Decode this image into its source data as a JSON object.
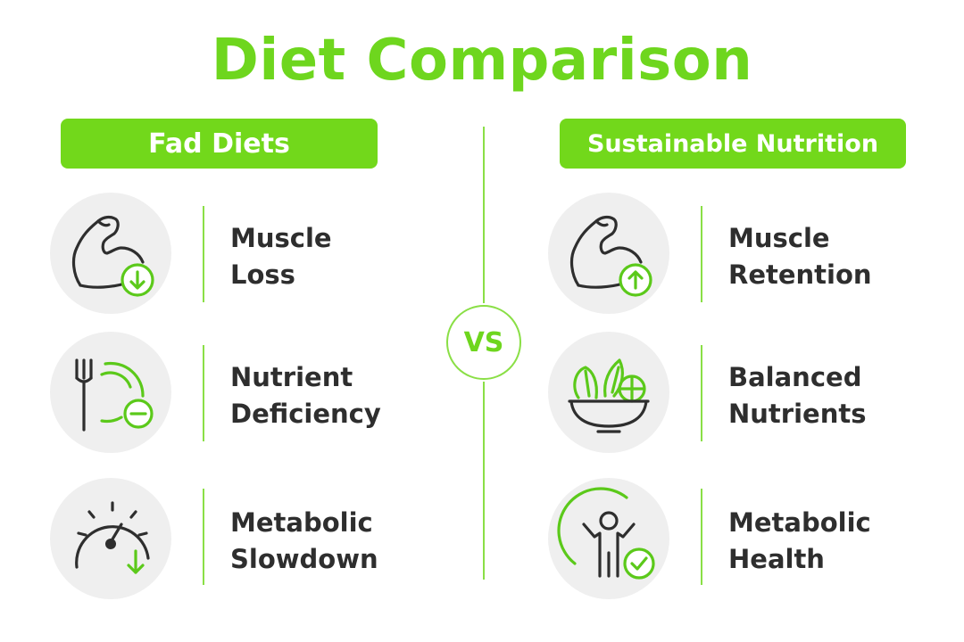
{
  "title": "Diet Comparison",
  "vs_label": "VS",
  "colors": {
    "accent": "#72d81b",
    "text": "#2e2e2e",
    "bubble": "#efefef"
  },
  "left": {
    "header": "Fad Diets",
    "items": [
      {
        "line1": "Muscle",
        "line2": "Loss",
        "icon": "flexed-arm-down-arrow-icon"
      },
      {
        "line1": "Nutrient",
        "line2": "Deficiency",
        "icon": "fork-minus-icon"
      },
      {
        "line1": "Metabolic",
        "line2": "Slowdown",
        "icon": "speedometer-down-arrow-icon"
      }
    ]
  },
  "right": {
    "header": "Sustainable Nutrition",
    "items": [
      {
        "line1": "Muscle",
        "line2": "Retention",
        "icon": "flexed-arm-up-arrow-icon"
      },
      {
        "line1": "Balanced",
        "line2": "Nutrients",
        "icon": "salad-bowl-icon"
      },
      {
        "line1": "Metabolic",
        "line2": "Health",
        "icon": "person-check-icon"
      }
    ]
  }
}
